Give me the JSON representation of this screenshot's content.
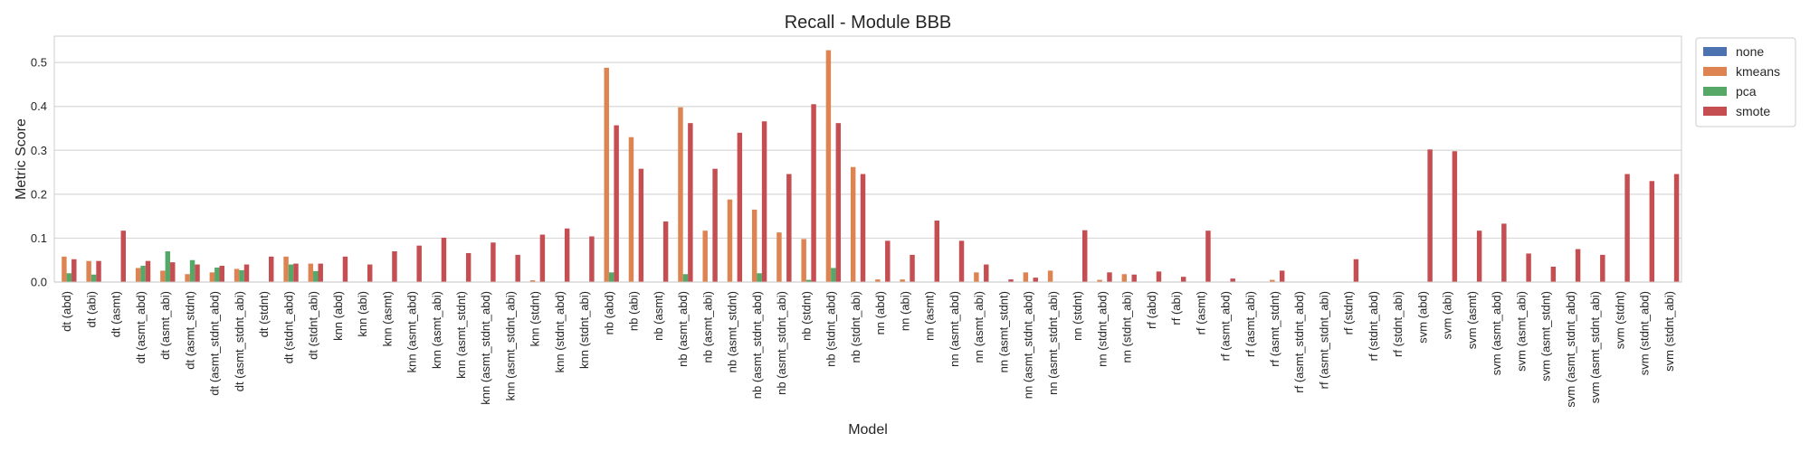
{
  "chart_data": {
    "type": "bar",
    "title": "Recall - Module BBB",
    "xlabel": "Model",
    "ylabel": "Metric Score",
    "ylim": [
      0,
      0.56
    ],
    "yticks": [
      0.0,
      0.1,
      0.2,
      0.3,
      0.4,
      0.5
    ],
    "ytick_labels": [
      "0.0",
      "0.1",
      "0.2",
      "0.3",
      "0.4",
      "0.5"
    ],
    "grid": true,
    "legend_position": "outside-top-right",
    "categories": [
      "dt (abd)",
      "dt (abi)",
      "dt (asmt)",
      "dt (asmt_abd)",
      "dt (asmt_abi)",
      "dt (asmt_stdnt)",
      "dt (asmt_stdnt_abd)",
      "dt (asmt_stdnt_abi)",
      "dt (stdnt)",
      "dt (stdnt_abd)",
      "dt (stdnt_abi)",
      "knn (abd)",
      "knn (abi)",
      "knn (asmt)",
      "knn (asmt_abd)",
      "knn (asmt_abi)",
      "knn (asmt_stdnt)",
      "knn (asmt_stdnt_abd)",
      "knn (asmt_stdnt_abi)",
      "knn (stdnt)",
      "knn (stdnt_abd)",
      "knn (stdnt_abi)",
      "nb (abd)",
      "nb (abi)",
      "nb (asmt)",
      "nb (asmt_abd)",
      "nb (asmt_abi)",
      "nb (asmt_stdnt)",
      "nb (asmt_stdnt_abd)",
      "nb (asmt_stdnt_abi)",
      "nb (stdnt)",
      "nb (stdnt_abd)",
      "nb (stdnt_abi)",
      "nn (abd)",
      "nn (abi)",
      "nn (asmt)",
      "nn (asmt_abd)",
      "nn (asmt_abi)",
      "nn (asmt_stdnt)",
      "nn (asmt_stdnt_abd)",
      "nn (asmt_stdnt_abi)",
      "nn (stdnt)",
      "nn (stdnt_abd)",
      "nn (stdnt_abi)",
      "rf (abd)",
      "rf (abi)",
      "rf (asmt)",
      "rf (asmt_abd)",
      "rf (asmt_abi)",
      "rf (asmt_stdnt)",
      "rf (asmt_stdnt_abd)",
      "rf (asmt_stdnt_abi)",
      "rf (stdnt)",
      "rf (stdnt_abd)",
      "rf (stdnt_abi)",
      "svm (abd)",
      "svm (abi)",
      "svm (asmt)",
      "svm (asmt_abd)",
      "svm (asmt_abi)",
      "svm (asmt_stdnt)",
      "svm (asmt_stdnt_abd)",
      "svm (asmt_stdnt_abi)",
      "svm (stdnt)",
      "svm (stdnt_abd)",
      "svm (stdnt_abi)"
    ],
    "series": [
      {
        "name": "none",
        "color": "#4c72b0",
        "values": [
          0,
          0,
          0,
          0,
          0,
          0,
          0,
          0,
          0,
          0,
          0,
          0,
          0,
          0,
          0,
          0,
          0,
          0,
          0,
          0,
          0,
          0,
          0,
          0,
          0,
          0,
          0,
          0,
          0,
          0,
          0,
          0,
          0,
          0,
          0,
          0,
          0,
          0,
          0,
          0,
          0,
          0,
          0,
          0,
          0,
          0,
          0,
          0,
          0,
          0,
          0,
          0,
          0,
          0,
          0,
          0,
          0,
          0,
          0,
          0,
          0,
          0,
          0,
          0,
          0,
          0
        ]
      },
      {
        "name": "kmeans",
        "color": "#dd8452",
        "values": [
          0.058,
          0.048,
          0,
          0.032,
          0.026,
          0.018,
          0.022,
          0.03,
          0,
          0.058,
          0.042,
          0,
          0,
          0,
          0,
          0,
          0,
          0,
          0,
          0.004,
          0,
          0,
          0.488,
          0.33,
          0,
          0.398,
          0.117,
          0.188,
          0.165,
          0.113,
          0.098,
          0.528,
          0.262,
          0.006,
          0.006,
          0,
          0,
          0.022,
          0,
          0.022,
          0.026,
          0,
          0.005,
          0.018,
          0,
          0,
          0,
          0,
          0,
          0.005,
          0,
          0,
          0,
          0,
          0,
          0,
          0,
          0,
          0,
          0,
          0,
          0,
          0,
          0,
          0,
          0
        ]
      },
      {
        "name": "pca",
        "color": "#55a868",
        "values": [
          0.02,
          0.017,
          0,
          0.037,
          0.07,
          0.05,
          0.033,
          0.027,
          0,
          0.04,
          0.025,
          0,
          0,
          0,
          0,
          0,
          0,
          0,
          0,
          0,
          0,
          0,
          0.022,
          0,
          0,
          0.018,
          0,
          0,
          0.02,
          0,
          0.005,
          0.032,
          0,
          0,
          0,
          0,
          0,
          0,
          0,
          0,
          0,
          0,
          0,
          0,
          0,
          0,
          0,
          0,
          0,
          0,
          0,
          0,
          0,
          0,
          0,
          0,
          0,
          0,
          0,
          0,
          0,
          0,
          0,
          0,
          0,
          0
        ]
      },
      {
        "name": "smote",
        "color": "#c44e52",
        "values": [
          0.052,
          0.048,
          0.117,
          0.048,
          0.045,
          0.04,
          0.037,
          0.04,
          0.058,
          0.042,
          0.042,
          0.058,
          0.04,
          0.07,
          0.083,
          0.101,
          0.066,
          0.09,
          0.062,
          0.108,
          0.122,
          0.104,
          0.357,
          0.258,
          0.138,
          0.362,
          0.258,
          0.34,
          0.366,
          0.246,
          0.405,
          0.362,
          0.246,
          0.094,
          0.062,
          0.14,
          0.094,
          0.04,
          0.006,
          0.01,
          0,
          0.118,
          0.022,
          0.017,
          0.024,
          0.012,
          0.117,
          0.008,
          0,
          0.026,
          0,
          0,
          0.052,
          0,
          0,
          0.302,
          0.298,
          0.117,
          0.133,
          0.065,
          0.035,
          0.075,
          0.062,
          0.246,
          0.23,
          0.246
        ]
      }
    ]
  }
}
